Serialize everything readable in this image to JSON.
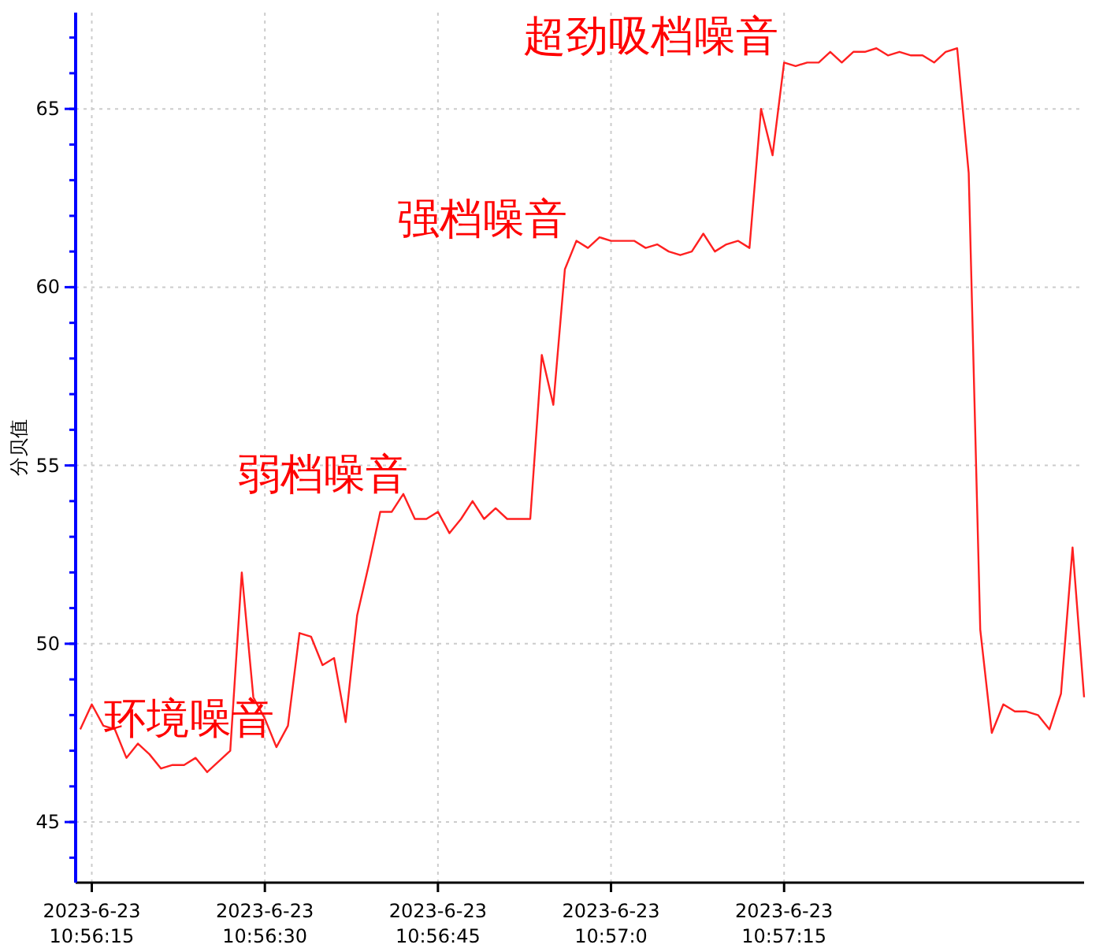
{
  "chart_data": {
    "type": "line",
    "ylabel": "分贝值",
    "xlim": [
      "2023-06-23T10:56:13.6",
      "2023-06-23T10:57:41"
    ],
    "ylim": [
      43.3,
      67.7
    ],
    "xticks": [
      {
        "value": "2023-06-23T10:56:15",
        "label": "2023-6-23 10:56:15"
      },
      {
        "value": "2023-06-23T10:56:30",
        "label": "2023-6-23 10:56:30"
      },
      {
        "value": "2023-06-23T10:56:45",
        "label": "2023-6-23 10:56:45"
      },
      {
        "value": "2023-06-23T10:57:00",
        "label": "2023-6-23 10:57:0"
      },
      {
        "value": "2023-06-23T10:57:15",
        "label": "2023-6-23 10:57:15"
      }
    ],
    "yticks": [
      45,
      50,
      55,
      60,
      65
    ],
    "grid": true,
    "marker": "none",
    "line_style": "solid",
    "annotations": [
      "环境噪音",
      "弱档噪音",
      "强档噪音",
      "超劲吸档噪音"
    ],
    "series": [
      {
        "color": "#ff2020",
        "x": [
          "2023-06-23T10:56:14",
          "2023-06-23T10:56:15",
          "2023-06-23T10:56:16",
          "2023-06-23T10:56:17",
          "2023-06-23T10:56:18",
          "2023-06-23T10:56:19",
          "2023-06-23T10:56:20",
          "2023-06-23T10:56:21",
          "2023-06-23T10:56:22",
          "2023-06-23T10:56:23",
          "2023-06-23T10:56:24",
          "2023-06-23T10:56:25",
          "2023-06-23T10:56:26",
          "2023-06-23T10:56:27",
          "2023-06-23T10:56:28",
          "2023-06-23T10:56:29",
          "2023-06-23T10:56:30",
          "2023-06-23T10:56:31",
          "2023-06-23T10:56:32",
          "2023-06-23T10:56:33",
          "2023-06-23T10:56:34",
          "2023-06-23T10:56:35",
          "2023-06-23T10:56:36",
          "2023-06-23T10:56:37",
          "2023-06-23T10:56:38",
          "2023-06-23T10:56:39",
          "2023-06-23T10:56:40",
          "2023-06-23T10:56:41",
          "2023-06-23T10:56:42",
          "2023-06-23T10:56:43",
          "2023-06-23T10:56:44",
          "2023-06-23T10:56:45",
          "2023-06-23T10:56:46",
          "2023-06-23T10:56:47",
          "2023-06-23T10:56:48",
          "2023-06-23T10:56:49",
          "2023-06-23T10:56:50",
          "2023-06-23T10:56:51",
          "2023-06-23T10:56:52",
          "2023-06-23T10:56:53",
          "2023-06-23T10:56:54",
          "2023-06-23T10:56:55",
          "2023-06-23T10:56:56",
          "2023-06-23T10:56:57",
          "2023-06-23T10:56:58",
          "2023-06-23T10:56:59",
          "2023-06-23T10:57:00",
          "2023-06-23T10:57:01",
          "2023-06-23T10:57:02",
          "2023-06-23T10:57:03",
          "2023-06-23T10:57:04",
          "2023-06-23T10:57:05",
          "2023-06-23T10:57:06",
          "2023-06-23T10:57:07",
          "2023-06-23T10:57:08",
          "2023-06-23T10:57:09",
          "2023-06-23T10:57:10",
          "2023-06-23T10:57:11",
          "2023-06-23T10:57:12",
          "2023-06-23T10:57:13",
          "2023-06-23T10:57:14",
          "2023-06-23T10:57:15",
          "2023-06-23T10:57:16",
          "2023-06-23T10:57:17",
          "2023-06-23T10:57:18",
          "2023-06-23T10:57:19",
          "2023-06-23T10:57:20",
          "2023-06-23T10:57:21",
          "2023-06-23T10:57:22",
          "2023-06-23T10:57:23",
          "2023-06-23T10:57:24",
          "2023-06-23T10:57:25",
          "2023-06-23T10:57:26",
          "2023-06-23T10:57:27",
          "2023-06-23T10:57:28",
          "2023-06-23T10:57:29",
          "2023-06-23T10:57:30",
          "2023-06-23T10:57:31",
          "2023-06-23T10:57:32",
          "2023-06-23T10:57:33",
          "2023-06-23T10:57:34",
          "2023-06-23T10:57:35",
          "2023-06-23T10:57:36",
          "2023-06-23T10:57:37",
          "2023-06-23T10:57:38",
          "2023-06-23T10:57:39",
          "2023-06-23T10:57:40",
          "2023-06-23T10:57:41"
        ],
        "values": [
          47.6,
          48.3,
          47.7,
          47.6,
          46.8,
          47.2,
          46.9,
          46.5,
          46.6,
          46.6,
          46.8,
          46.4,
          46.7,
          47.0,
          52.0,
          48.5,
          47.9,
          47.1,
          47.7,
          50.3,
          50.2,
          49.4,
          49.6,
          47.8,
          50.8,
          52.2,
          53.7,
          53.7,
          54.2,
          53.5,
          53.5,
          53.7,
          53.1,
          53.5,
          54.0,
          53.5,
          53.8,
          53.5,
          53.5,
          53.5,
          58.1,
          56.7,
          60.5,
          61.3,
          61.1,
          61.4,
          61.3,
          61.3,
          61.3,
          61.1,
          61.2,
          61.0,
          60.9,
          61.0,
          61.5,
          61.0,
          61.2,
          61.3,
          61.1,
          65.0,
          63.7,
          66.3,
          66.2,
          66.3,
          66.3,
          66.6,
          66.3,
          66.6,
          66.6,
          66.7,
          66.5,
          66.6,
          66.5,
          66.5,
          66.3,
          66.6,
          66.7,
          63.2,
          50.4,
          47.5,
          48.3,
          48.1,
          48.1,
          48.0,
          47.6,
          48.6,
          52.7,
          48.5
        ]
      }
    ]
  }
}
